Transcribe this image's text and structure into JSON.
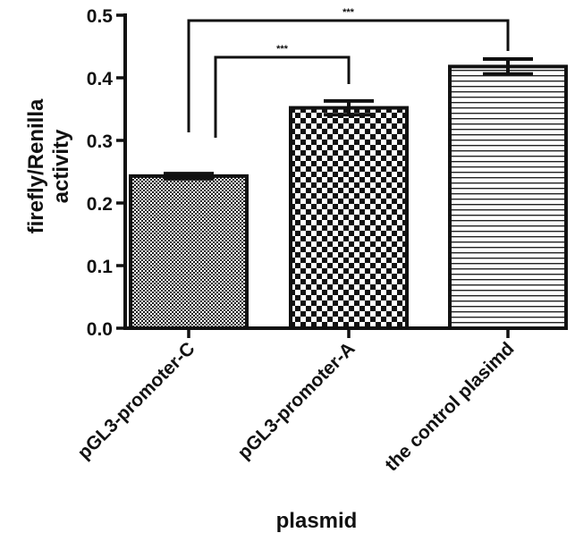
{
  "chart_data": {
    "type": "bar",
    "title": "",
    "xlabel": "plasmid",
    "ylabel_lines": [
      "firefly/Renilla",
      "activity"
    ],
    "categories": [
      "pGL3-promoter-C",
      "pGL3-promoter-A",
      "the control plasimd"
    ],
    "values": [
      0.243,
      0.352,
      0.418
    ],
    "errors": [
      0.004,
      0.011,
      0.012
    ],
    "patterns": [
      "fine-check",
      "coarse-check",
      "horizontal-lines"
    ],
    "ylim": [
      0,
      0.5
    ],
    "yticks": [
      "0.0",
      "0.1",
      "0.2",
      "0.3",
      "0.4",
      "0.5"
    ],
    "grid": false,
    "significance": [
      {
        "from": 0,
        "to": 1,
        "label": "***"
      },
      {
        "from": 0,
        "to": 2,
        "label": "***"
      }
    ]
  }
}
